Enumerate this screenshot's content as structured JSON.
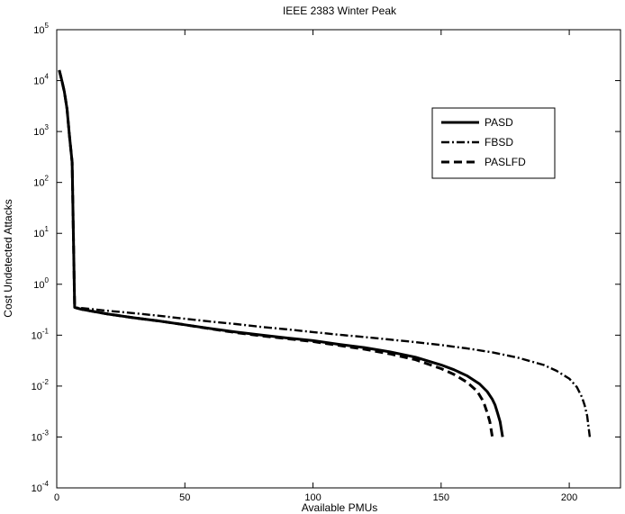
{
  "chart_data": {
    "type": "line",
    "title": "IEEE 2383 Winter Peak",
    "xlabel": "Available PMUs",
    "ylabel": "Cost Undetected Attacks",
    "xlim": [
      0,
      220
    ],
    "ylim": [
      0.0001,
      100000
    ],
    "yscale": "log",
    "x_ticks": [
      "0",
      "50",
      "100",
      "150",
      "200"
    ],
    "y_ticks": [
      {
        "base": "10",
        "exp": "-4"
      },
      {
        "base": "10",
        "exp": "-3"
      },
      {
        "base": "10",
        "exp": "-2"
      },
      {
        "base": "10",
        "exp": "-1"
      },
      {
        "base": "10",
        "exp": "0"
      },
      {
        "base": "10",
        "exp": "1"
      },
      {
        "base": "10",
        "exp": "2"
      },
      {
        "base": "10",
        "exp": "3"
      },
      {
        "base": "10",
        "exp": "4"
      },
      {
        "base": "10",
        "exp": "5"
      }
    ],
    "grid": false,
    "legend_position": "top-right",
    "series": [
      {
        "name": "PASD",
        "style": "solid",
        "color": "#000000",
        "points": [
          [
            1,
            16000
          ],
          [
            2,
            10000
          ],
          [
            3,
            6000
          ],
          [
            4,
            2800
          ],
          [
            5,
            800
          ],
          [
            6,
            250
          ],
          [
            7,
            0.35
          ],
          [
            10,
            0.32
          ],
          [
            20,
            0.26
          ],
          [
            30,
            0.22
          ],
          [
            40,
            0.19
          ],
          [
            50,
            0.16
          ],
          [
            60,
            0.135
          ],
          [
            70,
            0.115
          ],
          [
            80,
            0.1
          ],
          [
            90,
            0.088
          ],
          [
            100,
            0.078
          ],
          [
            110,
            0.066
          ],
          [
            120,
            0.057
          ],
          [
            130,
            0.047
          ],
          [
            140,
            0.037
          ],
          [
            150,
            0.026
          ],
          [
            155,
            0.021
          ],
          [
            160,
            0.016
          ],
          [
            165,
            0.011
          ],
          [
            168,
            0.0078
          ],
          [
            170,
            0.0055
          ],
          [
            171,
            0.0043
          ],
          [
            172,
            0.003
          ],
          [
            173,
            0.002
          ],
          [
            174,
            0.001
          ]
        ]
      },
      {
        "name": "FBSD",
        "style": "dashdot",
        "color": "#000000",
        "points": [
          [
            1,
            16000
          ],
          [
            2,
            10000
          ],
          [
            3,
            6000
          ],
          [
            4,
            2800
          ],
          [
            5,
            800
          ],
          [
            6,
            250
          ],
          [
            7,
            0.35
          ],
          [
            10,
            0.34
          ],
          [
            20,
            0.3
          ],
          [
            30,
            0.27
          ],
          [
            40,
            0.24
          ],
          [
            50,
            0.21
          ],
          [
            60,
            0.185
          ],
          [
            70,
            0.165
          ],
          [
            80,
            0.145
          ],
          [
            90,
            0.13
          ],
          [
            100,
            0.115
          ],
          [
            110,
            0.102
          ],
          [
            120,
            0.092
          ],
          [
            130,
            0.082
          ],
          [
            140,
            0.073
          ],
          [
            150,
            0.064
          ],
          [
            160,
            0.055
          ],
          [
            170,
            0.046
          ],
          [
            180,
            0.036
          ],
          [
            190,
            0.026
          ],
          [
            195,
            0.02
          ],
          [
            200,
            0.014
          ],
          [
            203,
            0.0095
          ],
          [
            205,
            0.006
          ],
          [
            206,
            0.0042
          ],
          [
            207,
            0.0026
          ],
          [
            208,
            0.001
          ]
        ]
      },
      {
        "name": "PASLFD",
        "style": "dashed",
        "color": "#000000",
        "points": [
          [
            1,
            16000
          ],
          [
            2,
            10000
          ],
          [
            3,
            6000
          ],
          [
            4,
            2800
          ],
          [
            5,
            800
          ],
          [
            6,
            250
          ],
          [
            7,
            0.35
          ],
          [
            10,
            0.32
          ],
          [
            20,
            0.26
          ],
          [
            30,
            0.22
          ],
          [
            40,
            0.19
          ],
          [
            50,
            0.16
          ],
          [
            60,
            0.133
          ],
          [
            70,
            0.112
          ],
          [
            80,
            0.097
          ],
          [
            90,
            0.085
          ],
          [
            100,
            0.075
          ],
          [
            110,
            0.063
          ],
          [
            120,
            0.053
          ],
          [
            130,
            0.043
          ],
          [
            140,
            0.033
          ],
          [
            150,
            0.022
          ],
          [
            155,
            0.017
          ],
          [
            160,
            0.012
          ],
          [
            164,
            0.008
          ],
          [
            166,
            0.0055
          ],
          [
            167,
            0.0042
          ],
          [
            168,
            0.003
          ],
          [
            169,
            0.002
          ],
          [
            170,
            0.001
          ]
        ]
      }
    ]
  }
}
